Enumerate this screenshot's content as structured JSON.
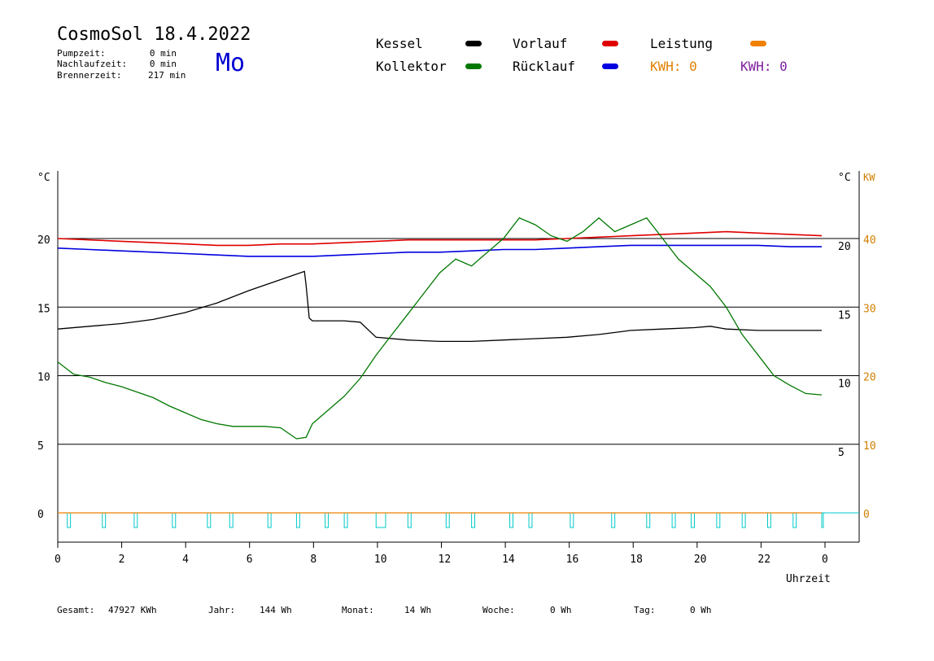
{
  "header": {
    "title": "CosmoSol 18.4.2022",
    "day": "Mo",
    "pump_label": "Pumpzeit:",
    "pump_value": "0 min",
    "nach_label": "Nachlaufzeit:",
    "nach_value": "0 min",
    "brenn_label": "Brennerzeit:",
    "brenn_value": "217 min"
  },
  "legend": {
    "kessel": "Kessel",
    "kollektor": "Kollektor",
    "vorlauf": "Vorlauf",
    "ruecklauf": "Rücklauf",
    "leistung": "Leistung",
    "kwh1": "KWH: 0",
    "kwh2": "KWH: 0"
  },
  "footer": {
    "gesamt_label": "Gesamt:",
    "gesamt_value": "47927 KWh",
    "jahr_label": "Jahr:",
    "jahr_value": "144 Wh",
    "monat_label": "Monat:",
    "monat_value": "14 Wh",
    "woche_label": "Woche:",
    "woche_value": "0 Wh",
    "tag_label": "Tag:",
    "tag_value": "0 Wh"
  },
  "colors": {
    "kessel": "#000000",
    "kollektor": "#007800",
    "vorlauf": "#e00000",
    "ruecklauf": "#0000e0",
    "leistung": "#f08000",
    "kwh1": "#e08000",
    "kwh2": "#8020a0",
    "pump": "#00c8c8",
    "right_kw": "#d08000"
  },
  "chart_data": {
    "type": "line",
    "xlabel": "Uhrzeit",
    "x_ticks": [
      "0",
      "2",
      "4",
      "6",
      "8",
      "10",
      "12",
      "14",
      "16",
      "18",
      "20",
      "22",
      "0"
    ],
    "xlim": [
      0,
      24
    ],
    "left_unit": "°C",
    "right_unit": "°C",
    "right_unit2": "KW",
    "left_ticks": [
      0,
      5,
      10,
      15,
      20
    ],
    "right_ticks": [
      5,
      10,
      15,
      20
    ],
    "kw_ticks": [
      0,
      10,
      20,
      30,
      40
    ],
    "ylim": [
      0,
      25
    ],
    "grid_y": [
      5,
      10,
      15,
      20
    ],
    "series": [
      {
        "name": "Vorlauf",
        "color": "#e00000",
        "points": [
          [
            0,
            20.0
          ],
          [
            1,
            19.9
          ],
          [
            2,
            19.8
          ],
          [
            3,
            19.7
          ],
          [
            4,
            19.6
          ],
          [
            5,
            19.5
          ],
          [
            6,
            19.5
          ],
          [
            7,
            19.6
          ],
          [
            8,
            19.6
          ],
          [
            9,
            19.7
          ],
          [
            10,
            19.8
          ],
          [
            11,
            19.9
          ],
          [
            12,
            19.9
          ],
          [
            13,
            19.9
          ],
          [
            14,
            19.9
          ],
          [
            15,
            19.9
          ],
          [
            16,
            20.0
          ],
          [
            17,
            20.1
          ],
          [
            18,
            20.2
          ],
          [
            19,
            20.3
          ],
          [
            20,
            20.4
          ],
          [
            21,
            20.5
          ],
          [
            22,
            20.4
          ],
          [
            23,
            20.3
          ],
          [
            24,
            20.2
          ]
        ]
      },
      {
        "name": "Rücklauf",
        "color": "#0000e0",
        "points": [
          [
            0,
            19.3
          ],
          [
            1,
            19.2
          ],
          [
            2,
            19.1
          ],
          [
            3,
            19.0
          ],
          [
            4,
            18.9
          ],
          [
            5,
            18.8
          ],
          [
            6,
            18.7
          ],
          [
            7,
            18.7
          ],
          [
            8,
            18.7
          ],
          [
            9,
            18.8
          ],
          [
            10,
            18.9
          ],
          [
            11,
            19.0
          ],
          [
            12,
            19.0
          ],
          [
            13,
            19.1
          ],
          [
            14,
            19.2
          ],
          [
            15,
            19.2
          ],
          [
            16,
            19.3
          ],
          [
            17,
            19.4
          ],
          [
            18,
            19.5
          ],
          [
            19,
            19.5
          ],
          [
            20,
            19.5
          ],
          [
            21,
            19.5
          ],
          [
            22,
            19.5
          ],
          [
            23,
            19.4
          ],
          [
            24,
            19.4
          ]
        ]
      },
      {
        "name": "Kessel",
        "color": "#000000",
        "points": [
          [
            0,
            13.4
          ],
          [
            1,
            13.6
          ],
          [
            2,
            13.8
          ],
          [
            3,
            14.1
          ],
          [
            4,
            14.6
          ],
          [
            5,
            15.3
          ],
          [
            6,
            16.2
          ],
          [
            7,
            17.0
          ],
          [
            7.75,
            17.6
          ],
          [
            7.8,
            16.6
          ],
          [
            7.9,
            14.2
          ],
          [
            8,
            14.0
          ],
          [
            9,
            14.0
          ],
          [
            9.5,
            13.9
          ],
          [
            10,
            12.8
          ],
          [
            11,
            12.6
          ],
          [
            12,
            12.5
          ],
          [
            13,
            12.5
          ],
          [
            14,
            12.6
          ],
          [
            15,
            12.7
          ],
          [
            16,
            12.8
          ],
          [
            17,
            13.0
          ],
          [
            18,
            13.3
          ],
          [
            19,
            13.4
          ],
          [
            20,
            13.5
          ],
          [
            20.5,
            13.6
          ],
          [
            21,
            13.4
          ],
          [
            22,
            13.3
          ],
          [
            23,
            13.3
          ],
          [
            24,
            13.3
          ]
        ]
      },
      {
        "name": "Kollektor",
        "color": "#007800",
        "points": [
          [
            0,
            11.0
          ],
          [
            0.5,
            10.1
          ],
          [
            1,
            9.9
          ],
          [
            1.5,
            9.5
          ],
          [
            2,
            9.2
          ],
          [
            2.5,
            8.8
          ],
          [
            3,
            8.4
          ],
          [
            3.5,
            7.8
          ],
          [
            4,
            7.3
          ],
          [
            4.5,
            6.8
          ],
          [
            5,
            6.5
          ],
          [
            5.5,
            6.3
          ],
          [
            6,
            6.3
          ],
          [
            6.5,
            6.3
          ],
          [
            7,
            6.2
          ],
          [
            7.5,
            5.4
          ],
          [
            7.8,
            5.5
          ],
          [
            8,
            6.5
          ],
          [
            8.5,
            7.5
          ],
          [
            9,
            8.5
          ],
          [
            9.5,
            9.8
          ],
          [
            10,
            11.5
          ],
          [
            10.5,
            13.0
          ],
          [
            11,
            14.5
          ],
          [
            11.5,
            16.0
          ],
          [
            12,
            17.5
          ],
          [
            12.5,
            18.5
          ],
          [
            13,
            18.0
          ],
          [
            13.5,
            19.0
          ],
          [
            14,
            20.0
          ],
          [
            14.5,
            21.5
          ],
          [
            15,
            21.0
          ],
          [
            15.5,
            20.2
          ],
          [
            16,
            19.8
          ],
          [
            16.5,
            20.5
          ],
          [
            17,
            21.5
          ],
          [
            17.5,
            20.5
          ],
          [
            18,
            21.0
          ],
          [
            18.5,
            21.5
          ],
          [
            19,
            20.0
          ],
          [
            19.5,
            18.5
          ],
          [
            20,
            17.5
          ],
          [
            20.5,
            16.5
          ],
          [
            21,
            15.0
          ],
          [
            21.5,
            13.0
          ],
          [
            22,
            11.5
          ],
          [
            22.5,
            10.0
          ],
          [
            23,
            9.3
          ],
          [
            23.5,
            8.7
          ],
          [
            24,
            8.6
          ]
        ]
      },
      {
        "name": "Leistung",
        "color": "#f08000",
        "points": [
          [
            0,
            0
          ],
          [
            24,
            0
          ]
        ]
      }
    ],
    "pump_on_intervals": [
      [
        0.3,
        0.4
      ],
      [
        1.4,
        1.5
      ],
      [
        2.4,
        2.5
      ],
      [
        3.6,
        3.7
      ],
      [
        4.7,
        4.8
      ],
      [
        5.4,
        5.5
      ],
      [
        6.6,
        6.7
      ],
      [
        7.5,
        7.6
      ],
      [
        8.4,
        8.5
      ],
      [
        9.0,
        9.1
      ],
      [
        10.0,
        10.3
      ],
      [
        11.0,
        11.1
      ],
      [
        12.2,
        12.3
      ],
      [
        13.0,
        13.1
      ],
      [
        14.2,
        14.3
      ],
      [
        14.8,
        14.9
      ],
      [
        16.1,
        16.2
      ],
      [
        17.4,
        17.5
      ],
      [
        18.5,
        18.6
      ],
      [
        19.3,
        19.4
      ],
      [
        19.9,
        20.0
      ],
      [
        20.7,
        20.8
      ],
      [
        21.5,
        21.6
      ],
      [
        22.3,
        22.4
      ],
      [
        23.1,
        23.2
      ],
      [
        24.0,
        24.05
      ]
    ]
  }
}
